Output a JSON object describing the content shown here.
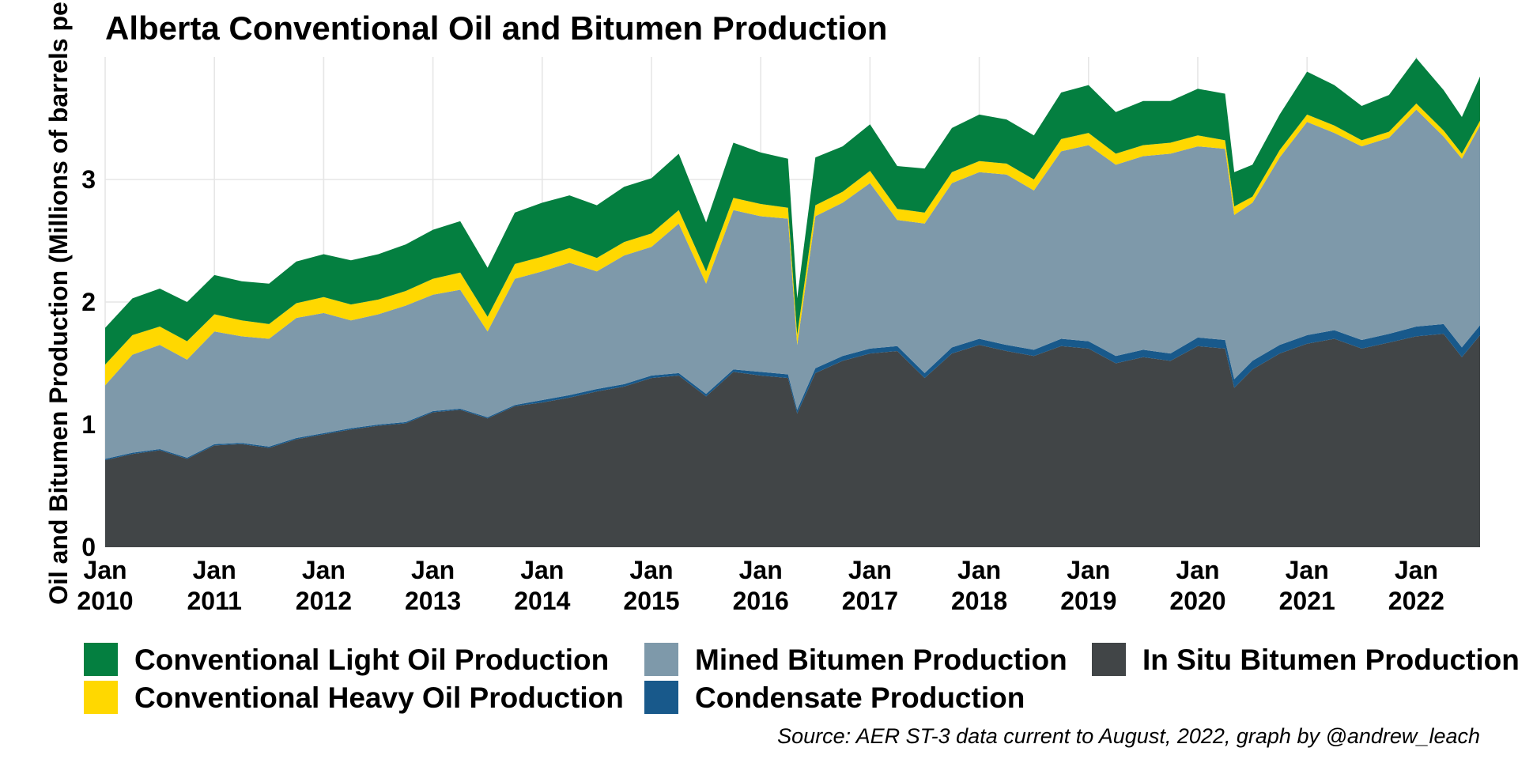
{
  "chart_data": {
    "type": "area",
    "stacked": true,
    "title": "Alberta Conventional Oil and Bitumen Production",
    "ylabel": "Oil and Bitumen Production (Millions of barrels per day)",
    "xlabel": "",
    "ylim": [
      0,
      4.0
    ],
    "yticks": [
      0,
      1,
      2,
      3
    ],
    "xticks": [
      "2010-01",
      "2011-01",
      "2012-01",
      "2013-01",
      "2014-01",
      "2015-01",
      "2016-01",
      "2017-01",
      "2018-01",
      "2019-01",
      "2020-01",
      "2021-01",
      "2022-01"
    ],
    "xtick_labels": [
      "Jan\n2010",
      "Jan\n2011",
      "Jan\n2012",
      "Jan\n2013",
      "Jan\n2014",
      "Jan\n2015",
      "Jan\n2016",
      "Jan\n2017",
      "Jan\n2018",
      "Jan\n2019",
      "Jan\n2020",
      "Jan\n2021",
      "Jan\n2022"
    ],
    "x": [
      "2010-01",
      "2010-04",
      "2010-07",
      "2010-10",
      "2011-01",
      "2011-04",
      "2011-07",
      "2011-10",
      "2012-01",
      "2012-04",
      "2012-07",
      "2012-10",
      "2013-01",
      "2013-04",
      "2013-07",
      "2013-10",
      "2014-01",
      "2014-04",
      "2014-07",
      "2014-10",
      "2015-01",
      "2015-04",
      "2015-07",
      "2015-10",
      "2016-01",
      "2016-04",
      "2016-05",
      "2016-07",
      "2016-10",
      "2017-01",
      "2017-04",
      "2017-07",
      "2017-10",
      "2018-01",
      "2018-04",
      "2018-07",
      "2018-10",
      "2019-01",
      "2019-04",
      "2019-07",
      "2019-10",
      "2020-01",
      "2020-04",
      "2020-05",
      "2020-07",
      "2020-10",
      "2021-01",
      "2021-04",
      "2021-07",
      "2021-10",
      "2022-01",
      "2022-04",
      "2022-06",
      "2022-08"
    ],
    "grid": true,
    "legend_position": "bottom",
    "series": [
      {
        "name": "In Situ Bitumen Production",
        "color": "#414547",
        "values": [
          0.71,
          0.76,
          0.79,
          0.72,
          0.83,
          0.84,
          0.81,
          0.88,
          0.92,
          0.96,
          0.99,
          1.01,
          1.1,
          1.12,
          1.05,
          1.15,
          1.18,
          1.22,
          1.27,
          1.31,
          1.38,
          1.4,
          1.23,
          1.43,
          1.4,
          1.38,
          1.09,
          1.42,
          1.52,
          1.58,
          1.6,
          1.38,
          1.58,
          1.65,
          1.6,
          1.56,
          1.64,
          1.62,
          1.5,
          1.55,
          1.52,
          1.64,
          1.62,
          1.3,
          1.45,
          1.58,
          1.66,
          1.7,
          1.62,
          1.67,
          1.72,
          1.74,
          1.55,
          1.73
        ]
      },
      {
        "name": "Condensate Production",
        "color": "#18598b",
        "values": [
          0.01,
          0.01,
          0.01,
          0.01,
          0.01,
          0.01,
          0.01,
          0.01,
          0.01,
          0.01,
          0.01,
          0.01,
          0.01,
          0.01,
          0.01,
          0.01,
          0.02,
          0.02,
          0.02,
          0.02,
          0.02,
          0.02,
          0.02,
          0.02,
          0.03,
          0.03,
          0.03,
          0.04,
          0.04,
          0.04,
          0.04,
          0.04,
          0.05,
          0.05,
          0.05,
          0.05,
          0.06,
          0.06,
          0.06,
          0.06,
          0.06,
          0.07,
          0.07,
          0.07,
          0.07,
          0.07,
          0.07,
          0.07,
          0.07,
          0.07,
          0.08,
          0.08,
          0.08,
          0.08
        ]
      },
      {
        "name": "Mined Bitumen Production",
        "color": "#7e99aa",
        "values": [
          0.6,
          0.8,
          0.85,
          0.8,
          0.92,
          0.87,
          0.88,
          0.98,
          0.98,
          0.88,
          0.9,
          0.95,
          0.95,
          0.97,
          0.7,
          1.03,
          1.05,
          1.08,
          0.96,
          1.05,
          1.05,
          1.22,
          0.9,
          1.3,
          1.27,
          1.27,
          0.53,
          1.24,
          1.25,
          1.35,
          1.03,
          1.22,
          1.34,
          1.36,
          1.39,
          1.3,
          1.53,
          1.6,
          1.56,
          1.58,
          1.63,
          1.56,
          1.56,
          1.34,
          1.29,
          1.53,
          1.74,
          1.61,
          1.58,
          1.6,
          1.77,
          1.53,
          1.54,
          1.63
        ]
      },
      {
        "name": "Conventional Heavy Oil Production",
        "color": "#ffd800",
        "values": [
          0.17,
          0.16,
          0.15,
          0.15,
          0.14,
          0.13,
          0.12,
          0.12,
          0.13,
          0.13,
          0.12,
          0.12,
          0.13,
          0.14,
          0.12,
          0.12,
          0.12,
          0.12,
          0.11,
          0.11,
          0.11,
          0.11,
          0.1,
          0.1,
          0.1,
          0.09,
          0.08,
          0.09,
          0.09,
          0.1,
          0.09,
          0.09,
          0.09,
          0.09,
          0.09,
          0.09,
          0.1,
          0.1,
          0.09,
          0.09,
          0.09,
          0.09,
          0.07,
          0.07,
          0.05,
          0.06,
          0.06,
          0.06,
          0.05,
          0.05,
          0.05,
          0.05,
          0.04,
          0.04
        ]
      },
      {
        "name": "Conventional Light Oil Production",
        "color": "#047f40",
        "values": [
          0.3,
          0.3,
          0.31,
          0.32,
          0.32,
          0.32,
          0.33,
          0.34,
          0.35,
          0.36,
          0.37,
          0.38,
          0.4,
          0.42,
          0.4,
          0.42,
          0.44,
          0.43,
          0.43,
          0.45,
          0.45,
          0.46,
          0.4,
          0.45,
          0.42,
          0.4,
          0.3,
          0.39,
          0.37,
          0.38,
          0.35,
          0.36,
          0.36,
          0.38,
          0.36,
          0.36,
          0.38,
          0.39,
          0.34,
          0.36,
          0.34,
          0.38,
          0.38,
          0.28,
          0.26,
          0.29,
          0.35,
          0.33,
          0.28,
          0.3,
          0.37,
          0.33,
          0.3,
          0.36
        ]
      }
    ],
    "caption": "Source: AER ST-3 data current to August, 2022, graph by @andrew_leach"
  },
  "legend": [
    {
      "label": "Conventional Light Oil Production",
      "color": "#047f40"
    },
    {
      "label": "Conventional Heavy Oil Production",
      "color": "#ffd800"
    },
    {
      "label": "Mined Bitumen Production",
      "color": "#7e99aa"
    },
    {
      "label": "Condensate Production",
      "color": "#18598b"
    },
    {
      "label": "In Situ Bitumen Production",
      "color": "#414547"
    }
  ]
}
